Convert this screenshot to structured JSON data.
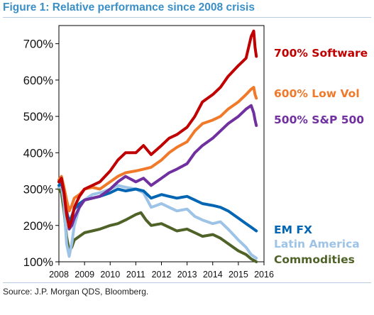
{
  "figure": {
    "title": "Figure 1: Relative performance since 2008 crisis",
    "source": "Source: J.P. Morgan QDS, Bloomberg."
  },
  "chart_data": {
    "type": "line",
    "title": "Figure 1: Relative performance since 2008 crisis",
    "xlabel": "",
    "ylabel": "",
    "xlim": [
      2008,
      2016
    ],
    "ylim": [
      100,
      750
    ],
    "grid": false,
    "y_ticks": [
      "100%",
      "200%",
      "300%",
      "400%",
      "500%",
      "600%",
      "700%"
    ],
    "y_tick_values": [
      100,
      200,
      300,
      400,
      500,
      600,
      700
    ],
    "x_ticks": [
      "2008",
      "2009",
      "2010",
      "2011",
      "2012",
      "2013",
      "2014",
      "2015",
      "2016"
    ],
    "x_tick_values": [
      2008,
      2009,
      2010,
      2011,
      2012,
      2013,
      2014,
      2015,
      2016
    ],
    "series": [
      {
        "name": "700% Software",
        "color": "#c00000",
        "points": [
          [
            2008.0,
            320
          ],
          [
            2008.1,
            330
          ],
          [
            2008.2,
            290
          ],
          [
            2008.3,
            230
          ],
          [
            2008.4,
            195
          ],
          [
            2008.5,
            215
          ],
          [
            2008.6,
            250
          ],
          [
            2008.8,
            280
          ],
          [
            2009.0,
            300
          ],
          [
            2009.3,
            310
          ],
          [
            2009.6,
            320
          ],
          [
            2010.0,
            350
          ],
          [
            2010.3,
            380
          ],
          [
            2010.6,
            400
          ],
          [
            2011.0,
            400
          ],
          [
            2011.3,
            420
          ],
          [
            2011.6,
            395
          ],
          [
            2012.0,
            420
          ],
          [
            2012.3,
            440
          ],
          [
            2012.6,
            450
          ],
          [
            2013.0,
            470
          ],
          [
            2013.3,
            500
          ],
          [
            2013.6,
            540
          ],
          [
            2014.0,
            560
          ],
          [
            2014.3,
            580
          ],
          [
            2014.6,
            610
          ],
          [
            2015.0,
            640
          ],
          [
            2015.3,
            660
          ],
          [
            2015.5,
            720
          ],
          [
            2015.6,
            735
          ],
          [
            2015.65,
            690
          ],
          [
            2015.7,
            665
          ]
        ]
      },
      {
        "name": "600% Low Vol",
        "color": "#f0792a",
        "points": [
          [
            2008.0,
            325
          ],
          [
            2008.1,
            335
          ],
          [
            2008.2,
            305
          ],
          [
            2008.3,
            270
          ],
          [
            2008.4,
            240
          ],
          [
            2008.5,
            255
          ],
          [
            2008.6,
            275
          ],
          [
            2008.8,
            285
          ],
          [
            2009.0,
            300
          ],
          [
            2009.3,
            305
          ],
          [
            2009.6,
            300
          ],
          [
            2010.0,
            320
          ],
          [
            2010.3,
            335
          ],
          [
            2010.6,
            345
          ],
          [
            2011.0,
            350
          ],
          [
            2011.3,
            355
          ],
          [
            2011.6,
            360
          ],
          [
            2012.0,
            380
          ],
          [
            2012.3,
            400
          ],
          [
            2012.6,
            415
          ],
          [
            2013.0,
            430
          ],
          [
            2013.3,
            460
          ],
          [
            2013.6,
            480
          ],
          [
            2014.0,
            490
          ],
          [
            2014.3,
            500
          ],
          [
            2014.6,
            520
          ],
          [
            2015.0,
            540
          ],
          [
            2015.3,
            560
          ],
          [
            2015.5,
            575
          ],
          [
            2015.6,
            580
          ],
          [
            2015.65,
            560
          ],
          [
            2015.7,
            550
          ]
        ]
      },
      {
        "name": "500% S&P 500",
        "color": "#7030a0",
        "points": [
          [
            2008.0,
            320
          ],
          [
            2008.1,
            320
          ],
          [
            2008.2,
            290
          ],
          [
            2008.3,
            240
          ],
          [
            2008.4,
            190
          ],
          [
            2008.5,
            200
          ],
          [
            2008.6,
            220
          ],
          [
            2008.8,
            250
          ],
          [
            2009.0,
            270
          ],
          [
            2009.3,
            275
          ],
          [
            2009.6,
            280
          ],
          [
            2010.0,
            300
          ],
          [
            2010.3,
            320
          ],
          [
            2010.6,
            335
          ],
          [
            2011.0,
            320
          ],
          [
            2011.3,
            330
          ],
          [
            2011.6,
            310
          ],
          [
            2012.0,
            330
          ],
          [
            2012.3,
            345
          ],
          [
            2012.6,
            355
          ],
          [
            2013.0,
            370
          ],
          [
            2013.3,
            400
          ],
          [
            2013.6,
            420
          ],
          [
            2014.0,
            440
          ],
          [
            2014.3,
            460
          ],
          [
            2014.6,
            480
          ],
          [
            2015.0,
            500
          ],
          [
            2015.3,
            520
          ],
          [
            2015.5,
            530
          ],
          [
            2015.6,
            510
          ],
          [
            2015.65,
            490
          ],
          [
            2015.7,
            475
          ]
        ]
      },
      {
        "name": "EM FX",
        "color": "#0066b3",
        "points": [
          [
            2008.0,
            310
          ],
          [
            2008.1,
            315
          ],
          [
            2008.2,
            290
          ],
          [
            2008.3,
            240
          ],
          [
            2008.4,
            210
          ],
          [
            2008.5,
            225
          ],
          [
            2008.6,
            245
          ],
          [
            2008.8,
            260
          ],
          [
            2009.0,
            270
          ],
          [
            2009.3,
            275
          ],
          [
            2009.6,
            280
          ],
          [
            2010.0,
            290
          ],
          [
            2010.3,
            300
          ],
          [
            2010.6,
            295
          ],
          [
            2011.0,
            300
          ],
          [
            2011.3,
            295
          ],
          [
            2011.6,
            275
          ],
          [
            2012.0,
            285
          ],
          [
            2012.3,
            280
          ],
          [
            2012.6,
            275
          ],
          [
            2013.0,
            280
          ],
          [
            2013.3,
            270
          ],
          [
            2013.6,
            260
          ],
          [
            2014.0,
            255
          ],
          [
            2014.3,
            250
          ],
          [
            2014.6,
            240
          ],
          [
            2015.0,
            220
          ],
          [
            2015.3,
            205
          ],
          [
            2015.5,
            195
          ],
          [
            2015.7,
            185
          ]
        ]
      },
      {
        "name": "Latin America",
        "color": "#9dc3e6",
        "points": [
          [
            2008.0,
            305
          ],
          [
            2008.1,
            310
          ],
          [
            2008.2,
            260
          ],
          [
            2008.3,
            150
          ],
          [
            2008.4,
            115
          ],
          [
            2008.5,
            150
          ],
          [
            2008.6,
            200
          ],
          [
            2008.8,
            250
          ],
          [
            2009.0,
            270
          ],
          [
            2009.3,
            285
          ],
          [
            2009.6,
            290
          ],
          [
            2010.0,
            300
          ],
          [
            2010.3,
            310
          ],
          [
            2010.6,
            305
          ],
          [
            2011.0,
            300
          ],
          [
            2011.3,
            290
          ],
          [
            2011.6,
            250
          ],
          [
            2012.0,
            260
          ],
          [
            2012.3,
            250
          ],
          [
            2012.6,
            240
          ],
          [
            2013.0,
            245
          ],
          [
            2013.3,
            225
          ],
          [
            2013.6,
            215
          ],
          [
            2014.0,
            205
          ],
          [
            2014.3,
            210
          ],
          [
            2014.6,
            190
          ],
          [
            2015.0,
            160
          ],
          [
            2015.3,
            140
          ],
          [
            2015.5,
            120
          ],
          [
            2015.7,
            110
          ]
        ]
      },
      {
        "name": "Commodities",
        "color": "#4f6228",
        "points": [
          [
            2008.0,
            300
          ],
          [
            2008.1,
            290
          ],
          [
            2008.2,
            240
          ],
          [
            2008.3,
            170
          ],
          [
            2008.4,
            130
          ],
          [
            2008.5,
            140
          ],
          [
            2008.6,
            160
          ],
          [
            2008.8,
            170
          ],
          [
            2009.0,
            180
          ],
          [
            2009.3,
            185
          ],
          [
            2009.6,
            190
          ],
          [
            2010.0,
            200
          ],
          [
            2010.3,
            205
          ],
          [
            2010.6,
            215
          ],
          [
            2011.0,
            230
          ],
          [
            2011.2,
            235
          ],
          [
            2011.4,
            215
          ],
          [
            2011.6,
            200
          ],
          [
            2012.0,
            205
          ],
          [
            2012.3,
            195
          ],
          [
            2012.6,
            185
          ],
          [
            2013.0,
            190
          ],
          [
            2013.3,
            180
          ],
          [
            2013.6,
            170
          ],
          [
            2014.0,
            175
          ],
          [
            2014.3,
            165
          ],
          [
            2014.6,
            150
          ],
          [
            2015.0,
            130
          ],
          [
            2015.3,
            120
          ],
          [
            2015.5,
            108
          ],
          [
            2015.7,
            100
          ]
        ]
      }
    ],
    "series_labels": [
      {
        "text": "700% Software",
        "color": "#c00000"
      },
      {
        "text": "600% Low Vol",
        "color": "#f0792a"
      },
      {
        "text": "500% S&P 500",
        "color": "#7030a0"
      },
      {
        "text": "EM FX",
        "color": "#0066b3"
      },
      {
        "text": "Latin America",
        "color": "#9dc3e6"
      },
      {
        "text": "Commodities",
        "color": "#4f6228"
      }
    ]
  }
}
